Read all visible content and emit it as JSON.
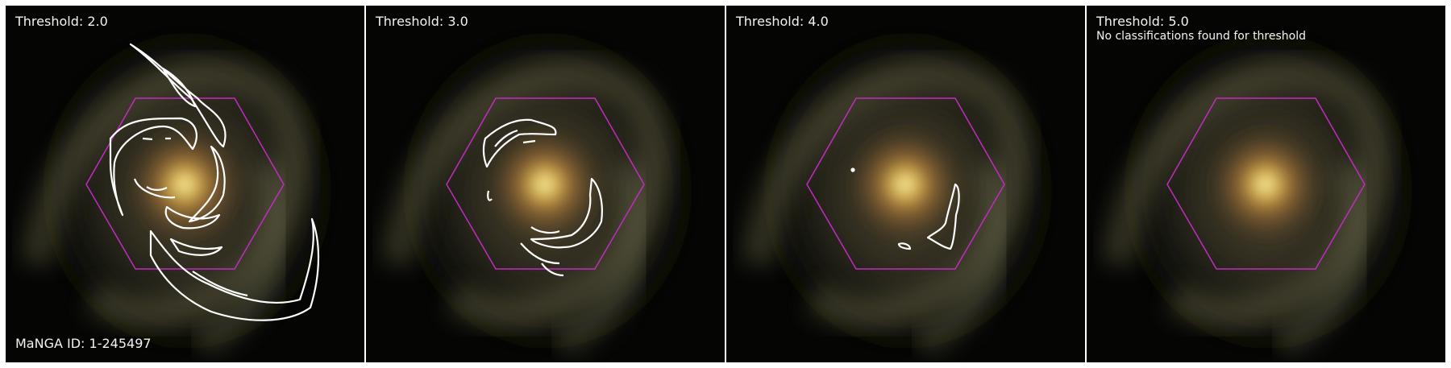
{
  "panels": [
    {
      "title": "Threshold: 2.0",
      "note": ""
    },
    {
      "title": "Threshold: 3.0",
      "note": ""
    },
    {
      "title": "Threshold: 4.0",
      "note": ""
    },
    {
      "title": "Threshold: 5.0",
      "note": "No classifications found for threshold"
    }
  ],
  "galaxy": {
    "manga_id_label": "MaNGA ID: 1-245497"
  },
  "colors": {
    "hexagon": "#c22bc2",
    "contour": "#ffffff",
    "background": "#050604"
  }
}
